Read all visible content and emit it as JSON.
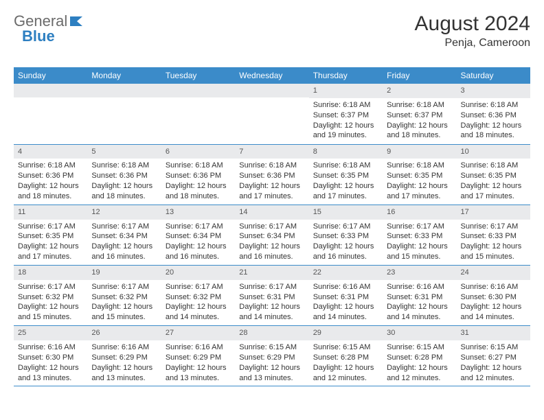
{
  "brand": {
    "part1": "General",
    "part2": "Blue"
  },
  "title": {
    "month": "August 2024",
    "location": "Penja, Cameroon"
  },
  "colors": {
    "header_bg": "#3b8bc9",
    "header_text": "#ffffff",
    "daynum_bg": "#e9eaec",
    "border": "#3b8bc9",
    "brand_gray": "#6b6b6b",
    "brand_blue": "#2d7fc1"
  },
  "weekdays": [
    "Sunday",
    "Monday",
    "Tuesday",
    "Wednesday",
    "Thursday",
    "Friday",
    "Saturday"
  ],
  "layout": {
    "first_weekday_index": 4,
    "days_in_month": 31
  },
  "days": {
    "1": {
      "sunrise": "Sunrise: 6:18 AM",
      "sunset": "Sunset: 6:37 PM",
      "daylight": "Daylight: 12 hours and 19 minutes."
    },
    "2": {
      "sunrise": "Sunrise: 6:18 AM",
      "sunset": "Sunset: 6:37 PM",
      "daylight": "Daylight: 12 hours and 18 minutes."
    },
    "3": {
      "sunrise": "Sunrise: 6:18 AM",
      "sunset": "Sunset: 6:36 PM",
      "daylight": "Daylight: 12 hours and 18 minutes."
    },
    "4": {
      "sunrise": "Sunrise: 6:18 AM",
      "sunset": "Sunset: 6:36 PM",
      "daylight": "Daylight: 12 hours and 18 minutes."
    },
    "5": {
      "sunrise": "Sunrise: 6:18 AM",
      "sunset": "Sunset: 6:36 PM",
      "daylight": "Daylight: 12 hours and 18 minutes."
    },
    "6": {
      "sunrise": "Sunrise: 6:18 AM",
      "sunset": "Sunset: 6:36 PM",
      "daylight": "Daylight: 12 hours and 18 minutes."
    },
    "7": {
      "sunrise": "Sunrise: 6:18 AM",
      "sunset": "Sunset: 6:36 PM",
      "daylight": "Daylight: 12 hours and 17 minutes."
    },
    "8": {
      "sunrise": "Sunrise: 6:18 AM",
      "sunset": "Sunset: 6:35 PM",
      "daylight": "Daylight: 12 hours and 17 minutes."
    },
    "9": {
      "sunrise": "Sunrise: 6:18 AM",
      "sunset": "Sunset: 6:35 PM",
      "daylight": "Daylight: 12 hours and 17 minutes."
    },
    "10": {
      "sunrise": "Sunrise: 6:18 AM",
      "sunset": "Sunset: 6:35 PM",
      "daylight": "Daylight: 12 hours and 17 minutes."
    },
    "11": {
      "sunrise": "Sunrise: 6:17 AM",
      "sunset": "Sunset: 6:35 PM",
      "daylight": "Daylight: 12 hours and 17 minutes."
    },
    "12": {
      "sunrise": "Sunrise: 6:17 AM",
      "sunset": "Sunset: 6:34 PM",
      "daylight": "Daylight: 12 hours and 16 minutes."
    },
    "13": {
      "sunrise": "Sunrise: 6:17 AM",
      "sunset": "Sunset: 6:34 PM",
      "daylight": "Daylight: 12 hours and 16 minutes."
    },
    "14": {
      "sunrise": "Sunrise: 6:17 AM",
      "sunset": "Sunset: 6:34 PM",
      "daylight": "Daylight: 12 hours and 16 minutes."
    },
    "15": {
      "sunrise": "Sunrise: 6:17 AM",
      "sunset": "Sunset: 6:33 PM",
      "daylight": "Daylight: 12 hours and 16 minutes."
    },
    "16": {
      "sunrise": "Sunrise: 6:17 AM",
      "sunset": "Sunset: 6:33 PM",
      "daylight": "Daylight: 12 hours and 15 minutes."
    },
    "17": {
      "sunrise": "Sunrise: 6:17 AM",
      "sunset": "Sunset: 6:33 PM",
      "daylight": "Daylight: 12 hours and 15 minutes."
    },
    "18": {
      "sunrise": "Sunrise: 6:17 AM",
      "sunset": "Sunset: 6:32 PM",
      "daylight": "Daylight: 12 hours and 15 minutes."
    },
    "19": {
      "sunrise": "Sunrise: 6:17 AM",
      "sunset": "Sunset: 6:32 PM",
      "daylight": "Daylight: 12 hours and 15 minutes."
    },
    "20": {
      "sunrise": "Sunrise: 6:17 AM",
      "sunset": "Sunset: 6:32 PM",
      "daylight": "Daylight: 12 hours and 14 minutes."
    },
    "21": {
      "sunrise": "Sunrise: 6:17 AM",
      "sunset": "Sunset: 6:31 PM",
      "daylight": "Daylight: 12 hours and 14 minutes."
    },
    "22": {
      "sunrise": "Sunrise: 6:16 AM",
      "sunset": "Sunset: 6:31 PM",
      "daylight": "Daylight: 12 hours and 14 minutes."
    },
    "23": {
      "sunrise": "Sunrise: 6:16 AM",
      "sunset": "Sunset: 6:31 PM",
      "daylight": "Daylight: 12 hours and 14 minutes."
    },
    "24": {
      "sunrise": "Sunrise: 6:16 AM",
      "sunset": "Sunset: 6:30 PM",
      "daylight": "Daylight: 12 hours and 14 minutes."
    },
    "25": {
      "sunrise": "Sunrise: 6:16 AM",
      "sunset": "Sunset: 6:30 PM",
      "daylight": "Daylight: 12 hours and 13 minutes."
    },
    "26": {
      "sunrise": "Sunrise: 6:16 AM",
      "sunset": "Sunset: 6:29 PM",
      "daylight": "Daylight: 12 hours and 13 minutes."
    },
    "27": {
      "sunrise": "Sunrise: 6:16 AM",
      "sunset": "Sunset: 6:29 PM",
      "daylight": "Daylight: 12 hours and 13 minutes."
    },
    "28": {
      "sunrise": "Sunrise: 6:15 AM",
      "sunset": "Sunset: 6:29 PM",
      "daylight": "Daylight: 12 hours and 13 minutes."
    },
    "29": {
      "sunrise": "Sunrise: 6:15 AM",
      "sunset": "Sunset: 6:28 PM",
      "daylight": "Daylight: 12 hours and 12 minutes."
    },
    "30": {
      "sunrise": "Sunrise: 6:15 AM",
      "sunset": "Sunset: 6:28 PM",
      "daylight": "Daylight: 12 hours and 12 minutes."
    },
    "31": {
      "sunrise": "Sunrise: 6:15 AM",
      "sunset": "Sunset: 6:27 PM",
      "daylight": "Daylight: 12 hours and 12 minutes."
    }
  }
}
